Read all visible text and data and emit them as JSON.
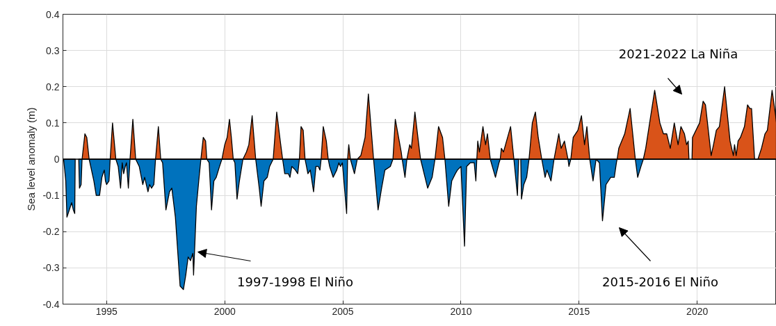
{
  "chart_data": {
    "type": "area",
    "ylabel": "Sea level anomaly (m)",
    "xlim": [
      1993.15,
      2023.35
    ],
    "xticks": [
      1995,
      2000,
      2005,
      2010,
      2015,
      2020
    ],
    "ylim": [
      -0.4,
      0.4
    ],
    "yticks": [
      -0.4,
      -0.3,
      -0.2,
      -0.1,
      0,
      0.1,
      0.2,
      0.3,
      0.4
    ],
    "grid": true,
    "ref_lines": [
      {
        "axis": "y",
        "value": 0,
        "color": "#000000"
      }
    ],
    "annotations": [
      "2021-2022 La Niña",
      "1997-1998 El Niño",
      "2015-2016 El Niño"
    ],
    "series": [
      {
        "color": "#d95319",
        "x": [
          1993.96,
          1994.08,
          1994.16,
          1994.26,
          null,
          1995.15,
          1995.25,
          1995.39,
          null,
          1995.99,
          1996.11,
          1996.23,
          null,
          1997.07,
          1997.19,
          1997.29,
          null,
          1998.99,
          1999.09,
          1999.19,
          1999.24,
          null,
          1999.88,
          2000.0,
          2000.1,
          2000.2,
          2000.28,
          2000.36,
          null,
          2000.77,
          2000.92,
          2001.02,
          2001.16,
          2001.31,
          null,
          2002.05,
          2002.2,
          2002.35,
          2002.45,
          null,
          2003.16,
          2003.23,
          2003.32,
          2003.4,
          null,
          2004.08,
          2004.17,
          2004.3,
          2004.38,
          null,
          2005.2,
          2005.25,
          2005.32,
          null,
          2005.61,
          2005.76,
          2005.94,
          2006.08,
          2006.3,
          null,
          2007.12,
          2007.22,
          2007.47,
          2007.51,
          null,
          2007.71,
          2007.83,
          2007.9,
          2008.05,
          2008.25,
          2008.29,
          null,
          2008.9,
          2009.05,
          2009.22,
          2009.32,
          null,
          2010.67,
          2010.71,
          2010.78,
          2010.93,
          2011.04,
          2011.12,
          2011.24,
          null,
          2011.66,
          2011.71,
          2011.8,
          2012.1,
          2012.24,
          null,
          2012.88,
          2013.02,
          2013.15,
          2013.27,
          2013.42,
          null,
          2013.94,
          2014.14,
          2014.24,
          2014.38,
          2014.5,
          2014.53,
          null,
          2014.65,
          2014.75,
          2014.95,
          2015.1,
          2015.23,
          2015.33,
          2015.45,
          null,
          2016.61,
          2016.68,
          2016.93,
          2017.16,
          2017.38,
          null,
          2017.72,
          2017.82,
          2018.2,
          2018.42,
          2018.57,
          2018.71,
          2018.86,
          2019.03,
          2019.19,
          2019.31,
          2019.46,
          2019.55,
          2019.62,
          2019.65,
          null,
          2019.78,
          2019.8,
          2020.1,
          2020.25,
          2020.35,
          2020.59,
          2020.69,
          2020.81,
          2020.94,
          2021.16,
          2021.39,
          2021.53,
          2021.58,
          2021.65,
          2021.73,
          2021.83,
          2022.0,
          2022.13,
          2022.23,
          2022.3,
          2022.43,
          2022.57,
          2022.72,
          2022.87,
          2022.97,
          2023.17,
          2023.32,
          2023.35
        ],
        "values": [
          0,
          0.07,
          0.06,
          0,
          null,
          0,
          0.1,
          0,
          null,
          0,
          0.11,
          0,
          null,
          0,
          0.09,
          0,
          null,
          0,
          0.06,
          0.05,
          0,
          null,
          0,
          0.04,
          0.06,
          0.11,
          0.06,
          0,
          null,
          0,
          0.02,
          0.04,
          0.12,
          0,
          null,
          0,
          0.13,
          0.05,
          0,
          null,
          0,
          0.09,
          0.08,
          0,
          null,
          0,
          0.09,
          0.05,
          0,
          null,
          0,
          0.04,
          0,
          null,
          0,
          0.01,
          0.06,
          0.18,
          0,
          null,
          0,
          0.11,
          0.02,
          0,
          null,
          0,
          0.04,
          0.03,
          0.13,
          0.02,
          0,
          null,
          0,
          0.09,
          0.06,
          0,
          null,
          0,
          0.05,
          0.02,
          0.09,
          0.04,
          0.07,
          0,
          null,
          0,
          0.03,
          0.02,
          0.09,
          0,
          null,
          0,
          0.1,
          0.13,
          0.06,
          0,
          null,
          0,
          0.07,
          0.03,
          0.05,
          0.01,
          0,
          null,
          0,
          0.06,
          0.08,
          0.12,
          0.04,
          0.09,
          0,
          null,
          0,
          0.03,
          0.07,
          0.14,
          0,
          null,
          0,
          0.03,
          0.19,
          0.1,
          0.07,
          0.07,
          0.03,
          0.1,
          0.04,
          0.09,
          0.07,
          0.04,
          0.05,
          0,
          null,
          0,
          0.06,
          0.1,
          0.16,
          0.15,
          0.01,
          0.04,
          0.08,
          0.09,
          0.2,
          0.05,
          0.01,
          0.04,
          0.01,
          0.05,
          0.06,
          0.09,
          0.15,
          0.14,
          0.14,
          0.0,
          0,
          0.03,
          0.07,
          0.08,
          0.19,
          0.12,
          0.1
        ]
      },
      {
        "color": "#0072bd",
        "x": [
          1993.18,
          1993.27,
          1993.32,
          1993.42,
          1993.52,
          1993.59,
          1993.65,
          1993.67,
          null,
          1993.82,
          1993.85,
          1993.92,
          1993.96,
          null,
          1994.26,
          1994.46,
          1994.56,
          1994.7,
          1994.8,
          1994.9,
          1994.95,
          1995.0,
          1995.1,
          1995.15,
          null,
          1995.39,
          1995.49,
          1995.59,
          1995.66,
          1995.72,
          1995.79,
          1995.84,
          1995.92,
          1995.99,
          null,
          1996.23,
          1996.38,
          1996.53,
          1996.61,
          1996.75,
          1996.82,
          1996.9,
          1997.0,
          1997.07,
          null,
          1997.29,
          1997.37,
          1997.51,
          1997.66,
          1997.76,
          1997.91,
          1998.11,
          1998.25,
          1998.35,
          1998.45,
          1998.55,
          1998.65,
          1998.68,
          1998.8,
          1998.9,
          1998.99,
          null,
          1999.24,
          1999.34,
          1999.44,
          1999.54,
          1999.64,
          1999.78,
          1999.88,
          null,
          2000.36,
          2000.43,
          2000.52,
          2000.62,
          2000.77,
          null,
          2001.31,
          2001.46,
          2001.54,
          2001.66,
          2001.8,
          2001.9,
          2002.05,
          null,
          2002.45,
          2002.54,
          2002.69,
          2002.76,
          2002.84,
          2002.99,
          2003.09,
          2003.16,
          null,
          2003.4,
          2003.52,
          2003.62,
          2003.76,
          2003.86,
          2003.96,
          2004.03,
          2004.08,
          null,
          2004.38,
          2004.44,
          2004.59,
          2004.74,
          2004.83,
          2004.9,
          2004.98,
          2005.16,
          2005.2,
          null,
          2005.32,
          2005.49,
          2005.61,
          null,
          2006.3,
          2006.49,
          2006.64,
          2006.78,
          2007.01,
          2007.12,
          null,
          2007.51,
          2007.63,
          2007.71,
          null,
          2008.29,
          2008.59,
          2008.78,
          2008.9,
          null,
          2009.32,
          2009.48,
          2009.61,
          2009.76,
          2009.85,
          2010.0,
          2010.15,
          2010.24,
          2010.39,
          2010.56,
          2010.63,
          2010.67,
          null,
          2011.24,
          2011.37,
          2011.46,
          2011.61,
          2011.66,
          null,
          2012.24,
          2012.39,
          2012.44,
          null,
          2012.53,
          2012.56,
          2012.66,
          2012.78,
          2012.88,
          null,
          2013.42,
          2013.56,
          2013.64,
          2013.81,
          2013.94,
          null,
          2014.53,
          2014.57,
          2014.65,
          null,
          2015.45,
          2015.59,
          2015.72,
          2015.86,
          2015.99,
          2016.14,
          2016.34,
          2016.49,
          2016.58,
          2016.61,
          null,
          2017.38,
          2017.48,
          2017.62,
          2017.72
        ],
        "values": [
          0,
          -0.06,
          -0.16,
          -0.14,
          -0.12,
          -0.14,
          -0.15,
          0,
          null,
          0,
          -0.08,
          -0.07,
          0,
          null,
          0,
          -0.06,
          -0.1,
          -0.1,
          -0.05,
          -0.03,
          -0.06,
          -0.07,
          -0.06,
          0,
          null,
          0,
          -0.02,
          -0.08,
          -0.01,
          -0.04,
          -0.02,
          -0.01,
          -0.08,
          0,
          null,
          0,
          -0.02,
          -0.07,
          -0.05,
          -0.09,
          -0.07,
          -0.08,
          -0.07,
          0,
          null,
          0,
          -0.01,
          -0.14,
          -0.09,
          -0.08,
          -0.16,
          -0.35,
          -0.36,
          -0.32,
          -0.27,
          -0.28,
          -0.26,
          -0.32,
          -0.13,
          -0.06,
          0,
          null,
          0,
          -0.01,
          -0.14,
          -0.06,
          -0.05,
          -0.02,
          0,
          null,
          0,
          -0.01,
          -0.11,
          -0.06,
          0,
          null,
          0,
          -0.08,
          -0.13,
          -0.06,
          -0.05,
          -0.02,
          0,
          null,
          0,
          -0.04,
          -0.04,
          -0.05,
          -0.02,
          -0.03,
          -0.04,
          0,
          null,
          0,
          -0.04,
          -0.03,
          -0.09,
          -0.02,
          -0.02,
          -0.03,
          0,
          null,
          0,
          -0.02,
          -0.05,
          -0.03,
          -0.01,
          -0.02,
          -0.01,
          -0.15,
          0,
          null,
          0,
          -0.04,
          0,
          null,
          0,
          -0.14,
          -0.08,
          -0.03,
          -0.02,
          0,
          null,
          0,
          -0.05,
          0,
          null,
          0,
          -0.08,
          -0.05,
          0,
          null,
          0,
          -0.13,
          -0.06,
          -0.04,
          -0.03,
          -0.02,
          -0.24,
          -0.02,
          -0.01,
          -0.01,
          -0.06,
          0,
          null,
          0,
          -0.03,
          -0.05,
          -0.01,
          0,
          null,
          0,
          -0.1,
          0,
          null,
          0,
          -0.11,
          -0.07,
          -0.05,
          0,
          null,
          0,
          -0.05,
          -0.03,
          -0.06,
          0,
          null,
          0,
          -0.02,
          0,
          null,
          0,
          -0.06,
          0,
          -0.01,
          -0.17,
          -0.07,
          -0.05,
          -0.05,
          -0.01,
          0,
          null,
          0,
          -0.05,
          -0.02,
          0
        ]
      }
    ]
  }
}
